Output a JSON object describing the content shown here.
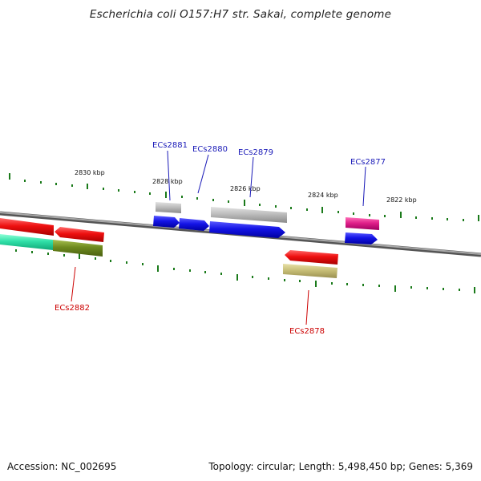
{
  "title": "Escherichia coli O157:H7 str. Sakai, complete genome",
  "footer": {
    "accession": "Accession: NC_002695",
    "topology": "Topology: circular; Length: 5,498,450 bp; Genes: 5,369"
  },
  "ticks": {
    "labels": [
      "2830 kbp",
      "2828 kbp",
      "2826 kbp",
      "2824 kbp",
      "2822 kbp"
    ]
  },
  "genes_top": [
    {
      "name": "ECs2881"
    },
    {
      "name": "ECs2880"
    },
    {
      "name": "ECs2879"
    },
    {
      "name": "ECs2877"
    }
  ],
  "genes_bottom": [
    {
      "name": "ECs2882"
    },
    {
      "name": "ECs2878"
    }
  ],
  "colors": {
    "red": "#e81010",
    "blue": "#1414e6",
    "gray": "#b8b8b8",
    "magenta": "#e0208a",
    "teal": "#30e0a8",
    "olive": "#6e8a1e",
    "khaki": "#c8bf78",
    "tick_green": "#1a7a1a",
    "backbone": "#808080",
    "top_label": "#1a1ab8",
    "bottom_label": "#cc0000"
  }
}
